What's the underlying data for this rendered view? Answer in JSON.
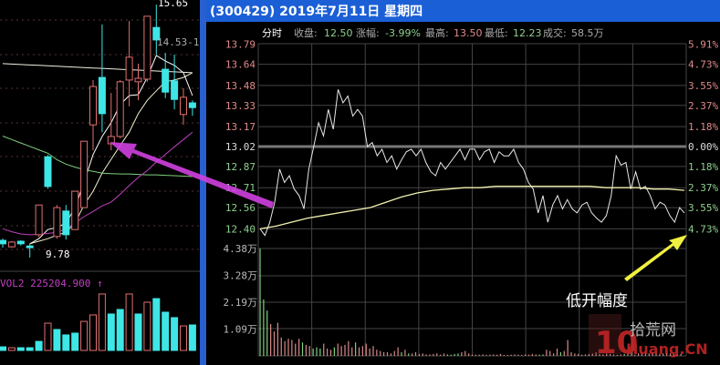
{
  "header": {
    "title": "(300429) 2019年7月11日 星期四",
    "mode_label": "分时",
    "close_label": "收盘:",
    "close_value": "12.50",
    "change_label": "涨幅:",
    "change_value": "-3.99%",
    "high_label": "最高:",
    "high_value": "13.50",
    "low_label": "最低:",
    "low_value": "12.23",
    "volume_label": "成交:",
    "volume_value": "58.5万"
  },
  "colors": {
    "up": "#e08a8a",
    "down": "#8fd08f",
    "cyan_candle": "#3ee6e6",
    "red_candle": "#e07070",
    "title_bar": "#1b5fd6",
    "price_line": "#e8e8e8",
    "avg_line": "#f2f2b0",
    "magenta_arrow": "#d040e0",
    "yellow_arrow": "#f0f040"
  },
  "annotations": {
    "low_open_text": "低开幅度",
    "watermark": "10 拾荒网 Huang.CN"
  },
  "chart_data": [
    {
      "type": "candlestick",
      "title": "",
      "markers": {
        "high": "15.65",
        "low": "9.78",
        "ref": "14.53-1"
      },
      "candles": [
        {
          "o": 10.18,
          "h": 10.22,
          "l": 10.01,
          "c": 10.1
        },
        {
          "o": 10.03,
          "h": 10.16,
          "l": 10.01,
          "c": 10.14
        },
        {
          "o": 10.16,
          "h": 10.18,
          "l": 10.06,
          "c": 10.1
        },
        {
          "o": 10.05,
          "h": 10.1,
          "l": 9.78,
          "c": 10.01
        },
        {
          "o": 10.31,
          "h": 11.0,
          "l": 10.26,
          "c": 11.0
        },
        {
          "o": 12.12,
          "h": 12.16,
          "l": 11.38,
          "c": 11.43
        },
        {
          "o": 10.27,
          "h": 11.0,
          "l": 10.22,
          "c": 10.94
        },
        {
          "o": 10.86,
          "h": 11.0,
          "l": 10.2,
          "c": 10.31
        },
        {
          "o": 10.43,
          "h": 11.32,
          "l": 10.43,
          "c": 11.32
        },
        {
          "o": 10.94,
          "h": 12.48,
          "l": 10.94,
          "c": 12.48
        },
        {
          "o": 12.86,
          "h": 13.9,
          "l": 12.27,
          "c": 13.75
        },
        {
          "o": 13.96,
          "h": 15.19,
          "l": 12.69,
          "c": 13.12
        },
        {
          "o": 12.42,
          "h": 13.6,
          "l": 12.27,
          "c": 12.59
        },
        {
          "o": 12.59,
          "h": 13.9,
          "l": 12.55,
          "c": 13.86
        },
        {
          "o": 13.9,
          "h": 15.27,
          "l": 13.29,
          "c": 14.43
        },
        {
          "o": 13.86,
          "h": 14.28,
          "l": 13.43,
          "c": 13.94
        },
        {
          "o": 13.92,
          "h": 15.38,
          "l": 13.86,
          "c": 15.38
        },
        {
          "o": 15.12,
          "h": 15.65,
          "l": 14.49,
          "c": 14.83
        },
        {
          "o": 14.15,
          "h": 14.53,
          "l": 13.48,
          "c": 13.62
        },
        {
          "o": 13.88,
          "h": 14.49,
          "l": 13.22,
          "c": 13.45
        },
        {
          "o": 13.1,
          "h": 13.71,
          "l": 12.86,
          "c": 13.5
        },
        {
          "o": 13.37,
          "h": 13.43,
          "l": 13.07,
          "c": 13.26
        }
      ],
      "moving_averages": [
        {
          "color": "#ffffff",
          "values": [
            null,
            null,
            null,
            10.1,
            10.22,
            10.43,
            10.48,
            10.58,
            10.94,
            11.53,
            12.17,
            12.59,
            12.91,
            13.33,
            13.54,
            13.56,
            13.96,
            14.47,
            14.34,
            14.24,
            14.07,
            13.54
          ]
        },
        {
          "color": "#f0f0d0",
          "values": [
            null,
            null,
            null,
            10.1,
            10.16,
            10.22,
            10.3,
            10.37,
            10.58,
            11.0,
            11.32,
            11.74,
            12.06,
            12.38,
            12.69,
            13.12,
            13.43,
            13.65,
            13.86,
            13.9,
            13.96,
            14.07
          ]
        },
        {
          "color": "#7fd07f",
          "values": [
            12.6,
            12.52,
            12.44,
            12.36,
            12.28,
            12.2,
            12.05,
            11.95,
            11.88,
            11.82,
            11.78,
            11.74,
            11.73,
            11.72,
            11.72,
            11.71,
            11.7,
            11.7,
            11.69,
            11.68,
            11.67,
            11.66
          ]
        },
        {
          "color": "#c040c0",
          "values": [
            10.45,
            10.38,
            10.33,
            10.31,
            10.32,
            10.34,
            10.37,
            10.45,
            10.58,
            10.73,
            10.85,
            10.98,
            11.07,
            11.25,
            11.45,
            11.64,
            11.8,
            12.0,
            12.17,
            12.35,
            12.52,
            12.69
          ]
        },
        {
          "color": "#f0f0e0",
          "values": [
            14.28,
            14.27,
            14.26,
            14.25,
            14.24,
            14.23,
            14.22,
            14.21,
            14.2,
            14.19,
            14.18,
            14.17,
            14.16,
            14.15,
            14.14,
            14.13,
            14.12,
            14.11,
            14.1,
            14.09,
            14.08,
            14.07
          ]
        }
      ],
      "volume_label": "VOL2 225204.900 ↑",
      "volumes": [
        32000,
        24000,
        24000,
        24000,
        80000,
        241000,
        185000,
        137000,
        153000,
        257000,
        314000,
        499000,
        322000,
        362000,
        499000,
        322000,
        426000,
        458000,
        338000,
        290000,
        217000,
        225204
      ],
      "volume_colors": "crcccrcccrrrccrcrcccrc"
    },
    {
      "type": "line",
      "title": "",
      "price_ticks": [
        "13.79",
        "13.64",
        "13.48",
        "13.33",
        "13.17",
        "13.02",
        "12.87",
        "12.71",
        "12.56",
        "12.40"
      ],
      "percent_ticks": [
        "5.91%",
        "4.73%",
        "3.55%",
        "2.37%",
        "1.18%",
        "0.00%",
        "1.18%",
        "2.37%",
        "3.55%",
        "4.73%"
      ],
      "prev_close": 13.02,
      "ylim": [
        12.36,
        13.79
      ],
      "price": [
        12.4,
        12.35,
        12.45,
        12.6,
        12.85,
        12.75,
        12.8,
        12.7,
        12.65,
        12.55,
        12.85,
        13.02,
        13.2,
        13.1,
        13.3,
        13.15,
        13.45,
        13.35,
        13.4,
        13.25,
        13.3,
        13.25,
        13.02,
        13.05,
        12.95,
        13.0,
        12.9,
        12.95,
        12.85,
        12.92,
        12.98,
        13.0,
        12.95,
        13.0,
        12.9,
        12.83,
        12.8,
        12.9,
        12.85,
        12.9,
        12.95,
        13.0,
        12.92,
        13.0,
        13.0,
        12.92,
        12.98,
        13.0,
        12.9,
        12.98,
        12.95,
        12.95,
        13.0,
        12.9,
        12.85,
        12.75,
        12.7,
        12.52,
        12.65,
        12.45,
        12.58,
        12.65,
        12.55,
        12.62,
        12.55,
        12.52,
        12.58,
        12.6,
        12.52,
        12.48,
        12.45,
        12.5,
        12.65,
        12.95,
        12.88,
        12.9,
        12.7,
        12.83,
        12.7,
        12.72,
        12.65,
        12.55,
        12.6,
        12.58,
        12.5,
        12.45,
        12.56,
        12.52
      ],
      "average": [
        12.4,
        12.42,
        12.45,
        12.48,
        12.5,
        12.52,
        12.54,
        12.56,
        12.6,
        12.64,
        12.67,
        12.69,
        12.7,
        12.71,
        12.71,
        12.72,
        12.72,
        12.72,
        12.72,
        12.72,
        12.72,
        12.72,
        12.71,
        12.71,
        12.71,
        12.7,
        12.7,
        12.69
      ],
      "volume_ticks": [
        "4.38万",
        "3.28万",
        "2.19万",
        "1.09万"
      ],
      "volume_ylim": [
        0,
        4.38
      ],
      "volume": [
        4.38,
        2.3,
        1.85,
        1.3,
        1.0,
        1.35,
        0.75,
        0.6,
        0.7,
        0.65,
        0.5,
        0.7,
        0.55,
        0.45,
        0.4,
        0.3,
        0.35,
        0.3,
        0.5,
        0.3,
        0.25,
        0.35,
        0.5,
        0.4,
        0.45,
        0.6,
        0.35,
        0.55,
        0.35,
        0.4,
        0.5,
        0.3,
        0.4,
        0.25,
        0.2,
        0.15,
        0.15,
        0.1,
        0.2,
        0.35,
        0.15,
        0.25,
        0.1,
        0.1,
        0.15,
        0.08,
        0.1,
        0.06,
        0.06,
        0.08,
        0.1,
        0.05,
        0.1,
        0.06,
        0.05,
        0.08,
        0.1,
        0.15,
        0.2,
        0.1,
        0.06,
        0.05,
        0.05,
        0.06,
        0.04,
        0.05,
        0.06,
        0.05,
        0.08,
        0.04,
        0.04,
        0.05,
        0.06,
        0.05,
        0.04,
        0.06,
        0.05,
        0.08,
        0.06,
        0.05,
        0.06,
        0.25,
        0.2,
        0.1,
        0.3,
        0.15,
        0.2,
        0.65,
        0.15,
        0.1,
        0.08,
        0.05,
        0.06,
        0.08,
        0.1,
        0.15,
        0.08,
        0.06,
        0.1,
        0.08,
        0.06,
        0.05,
        0.06,
        0.08,
        0.1,
        0.15,
        0.05,
        0.1,
        0.08,
        0.12,
        0.1,
        0.15,
        0.1,
        0.08,
        0.1,
        0.12,
        0.1,
        0.08,
        0.06,
        0.08
      ],
      "volume_colors": "gggrrrrrrrrrgrrgggrrrgrrrrrgrrrrrrrrrrrrgrgrrrrrrrrrrggggrrrrrrrrrrrrrrrrrrrrrrggrrrrgrrrrrrrrrrrrrrrrrgrrrrrrrrrrrrrrr"
    }
  ]
}
